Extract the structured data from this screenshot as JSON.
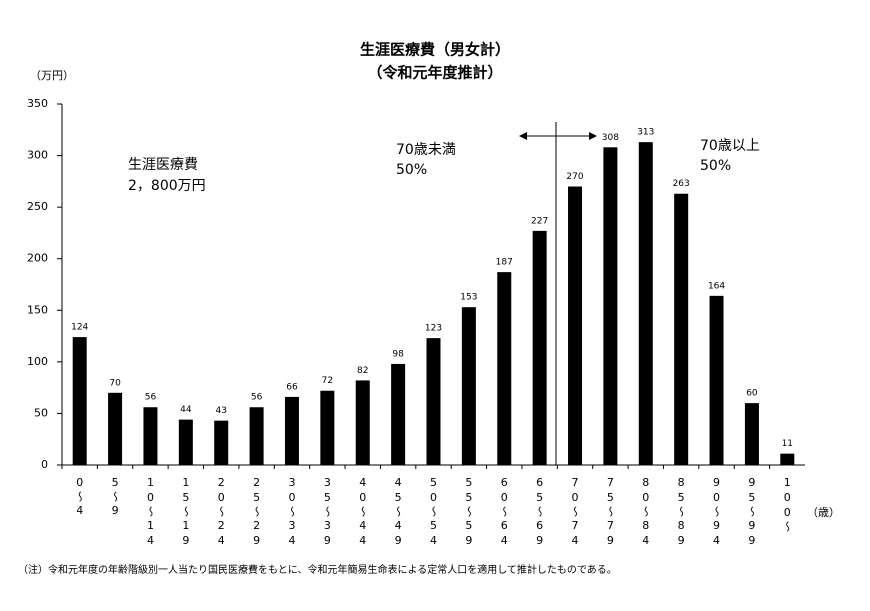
{
  "chart_data": {
    "type": "bar",
    "title": "生涯医療費（男女計）",
    "subtitle": "（令和元年度推計）",
    "y_label": "（万円）",
    "x_label": "（歳）",
    "categories": [
      "0～4",
      "5～9",
      "10～14",
      "15～19",
      "20～24",
      "25～29",
      "30～34",
      "35～39",
      "40～44",
      "45～49",
      "50～54",
      "55～59",
      "60～64",
      "65～69",
      "70～74",
      "75～79",
      "80～84",
      "85～89",
      "90～94",
      "95～99",
      "100～"
    ],
    "values": [
      124,
      70,
      56,
      44,
      43,
      56,
      66,
      72,
      82,
      98,
      123,
      153,
      187,
      227,
      270,
      308,
      313,
      263,
      164,
      60,
      11
    ],
    "color": "#000000",
    "ylim": [
      0,
      350
    ],
    "yticks": [
      0,
      50,
      100,
      150,
      200,
      250,
      300,
      350
    ],
    "grid": false,
    "annotations": [
      "生涯医療費",
      "2，800万円",
      "70歳未満",
      "50%",
      "70歳以上",
      "50%"
    ],
    "note": "（注）令和元年度の年齢階級別一人当たり国民医療費をもとに、令和元年簡易生命表による定常人口を適用して推計したものである。"
  }
}
